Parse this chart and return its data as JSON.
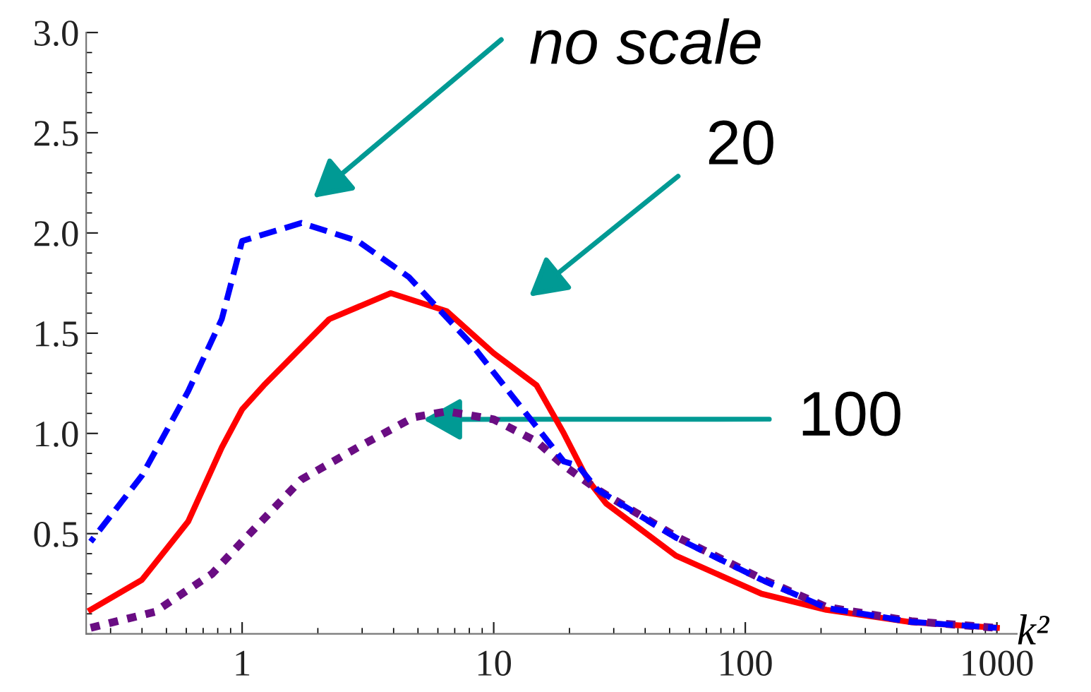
{
  "chart_data": {
    "type": "line",
    "xlabel": "k²",
    "log": "x",
    "grid": false,
    "xlim": [
      0.24,
      1200
    ],
    "xticks": [
      1,
      10,
      100,
      1000
    ],
    "ylim": [
      0,
      3.0
    ],
    "yticks": [
      {
        "value": 0.5,
        "label": "0.5"
      },
      {
        "value": 1.0,
        "label": "1.0"
      },
      {
        "value": 1.5,
        "label": "1.5"
      },
      {
        "value": 2.0,
        "label": "2.0"
      },
      {
        "value": 2.5,
        "label": "2.5"
      },
      {
        "value": 3.0,
        "label": "3.0"
      }
    ],
    "series": [
      {
        "color": "#0000ff",
        "line_style": "dashed",
        "x": [
          0.25,
          0.4,
          0.61,
          0.83,
          1.0,
          1.72,
          2.88,
          4.6,
          8.1,
          19,
          21.6,
          25.8,
          53,
          116,
          210,
          457,
          1000
        ],
        "values": [
          0.46,
          0.79,
          1.21,
          1.57,
          1.96,
          2.05,
          1.96,
          1.78,
          1.45,
          0.86,
          0.84,
          0.72,
          0.48,
          0.27,
          0.13,
          0.06,
          0.03
        ]
      },
      {
        "color": "#ff0000",
        "line_style": "solid",
        "x": [
          0.25,
          0.4,
          0.61,
          0.83,
          1.0,
          1.22,
          2.22,
          3.9,
          6.5,
          10,
          14.8,
          19,
          23.6,
          28,
          53,
          116,
          210,
          457,
          1000
        ],
        "values": [
          0.12,
          0.27,
          0.56,
          0.93,
          1.12,
          1.24,
          1.57,
          1.7,
          1.61,
          1.4,
          1.24,
          1.0,
          0.77,
          0.65,
          0.39,
          0.2,
          0.12,
          0.058,
          0.03
        ]
      },
      {
        "color": "#6a0d83",
        "line_style": "dotted",
        "x": [
          0.25,
          0.45,
          0.76,
          1.0,
          1.72,
          2.88,
          4.8,
          6.5,
          10,
          14.8,
          19,
          25.8,
          53,
          116,
          210,
          457,
          1000
        ],
        "values": [
          0.03,
          0.11,
          0.3,
          0.46,
          0.77,
          0.93,
          1.08,
          1.11,
          1.07,
          0.96,
          0.84,
          0.72,
          0.486,
          0.275,
          0.134,
          0.063,
          0.03
        ]
      }
    ],
    "annotations": [
      "no scale",
      "20",
      {
        "text": "100",
        "x": 5.25,
        "y": 1.07
      }
    ]
  }
}
